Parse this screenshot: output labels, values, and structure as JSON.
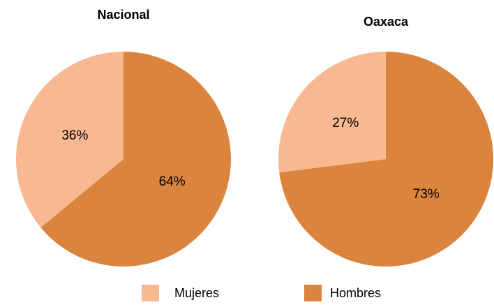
{
  "chart_data": [
    {
      "type": "pie",
      "title": "Nacional",
      "categories": [
        "Mujeres",
        "Hombres"
      ],
      "values": [
        36,
        64
      ],
      "value_labels": [
        "36%",
        "64%"
      ],
      "colors": [
        "#f8b891",
        "#db843d"
      ],
      "legend": "bottom"
    },
    {
      "type": "pie",
      "title": "Oaxaca",
      "categories": [
        "Mujeres",
        "Hombres"
      ],
      "values": [
        27,
        73
      ],
      "value_labels": [
        "27%",
        "73%"
      ],
      "colors": [
        "#f8b891",
        "#db843d"
      ]
    }
  ]
}
